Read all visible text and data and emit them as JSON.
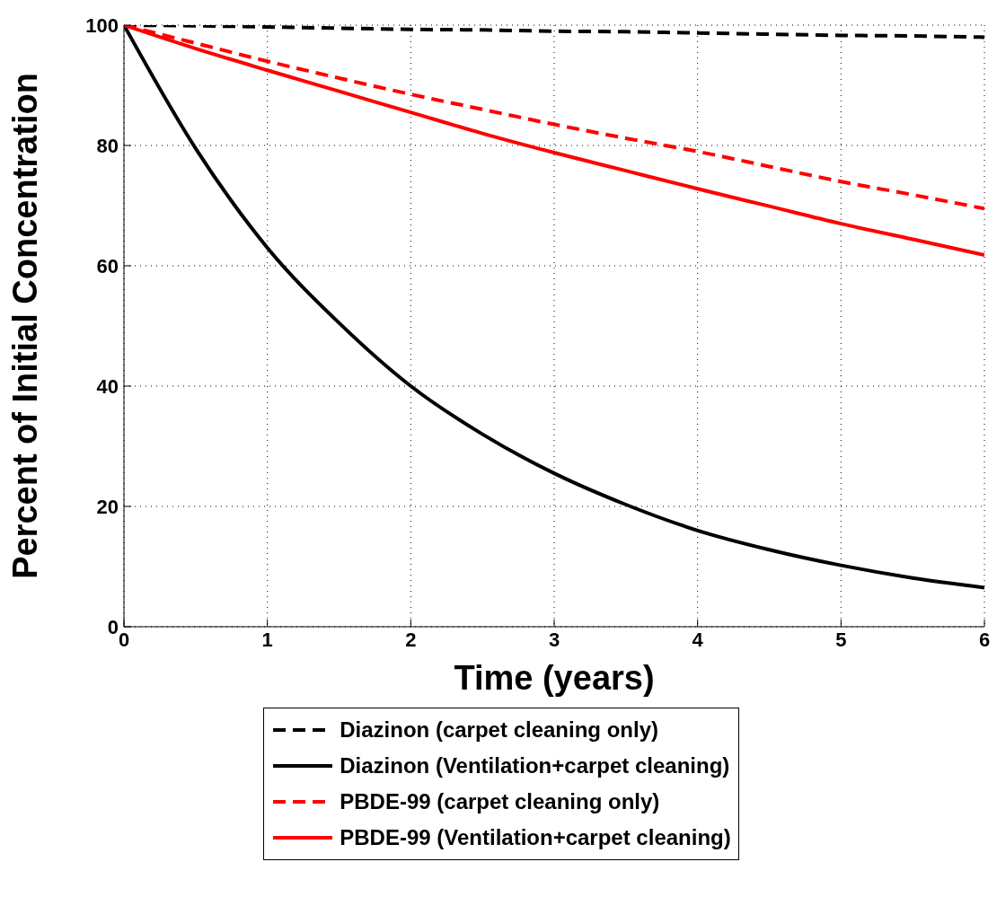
{
  "chart_data": {
    "type": "line",
    "xlabel": "Time (years)",
    "ylabel": "Percent of Initial Concentration",
    "x": [
      0,
      0.5,
      1,
      1.5,
      2,
      2.5,
      3,
      3.5,
      4,
      4.5,
      5,
      5.5,
      6
    ],
    "xlim": [
      0,
      6
    ],
    "xticks": [
      0,
      1,
      2,
      3,
      4,
      5,
      6
    ],
    "ylim": [
      0,
      100
    ],
    "yticks": [
      0,
      20,
      40,
      60,
      80,
      100
    ],
    "grid": true,
    "legend": "bottom",
    "marker": "none",
    "series": [
      {
        "name": "Diazinon (carpet cleaning only)",
        "color": "#000000",
        "line_style": "dashed",
        "values": [
          100,
          99.9,
          99.7,
          99.5,
          99.3,
          99.2,
          99,
          98.9,
          98.7,
          98.5,
          98.3,
          98.2,
          98
        ]
      },
      {
        "name": "Diazinon (Ventilation+carpet cleaning)",
        "color": "#000000",
        "line_style": "solid",
        "values": [
          100,
          79.5,
          63,
          50.5,
          40,
          32,
          25.5,
          20.3,
          16,
          12.8,
          10.2,
          8.1,
          6.5
        ]
      },
      {
        "name": "PBDE-99 (carpet cleaning only)",
        "color": "#ff0000",
        "line_style": "dashed",
        "values": [
          100,
          97,
          94,
          91.2,
          88.5,
          86,
          83.5,
          81.2,
          79,
          76.5,
          74,
          71.8,
          69.5
        ]
      },
      {
        "name": "PBDE-99 (Ventilation+carpet cleaning)",
        "color": "#ff0000",
        "line_style": "solid",
        "values": [
          100,
          96.1,
          92.5,
          89,
          85.5,
          82,
          78.8,
          75.8,
          72.8,
          69.9,
          67,
          64.4,
          61.8
        ]
      }
    ]
  }
}
